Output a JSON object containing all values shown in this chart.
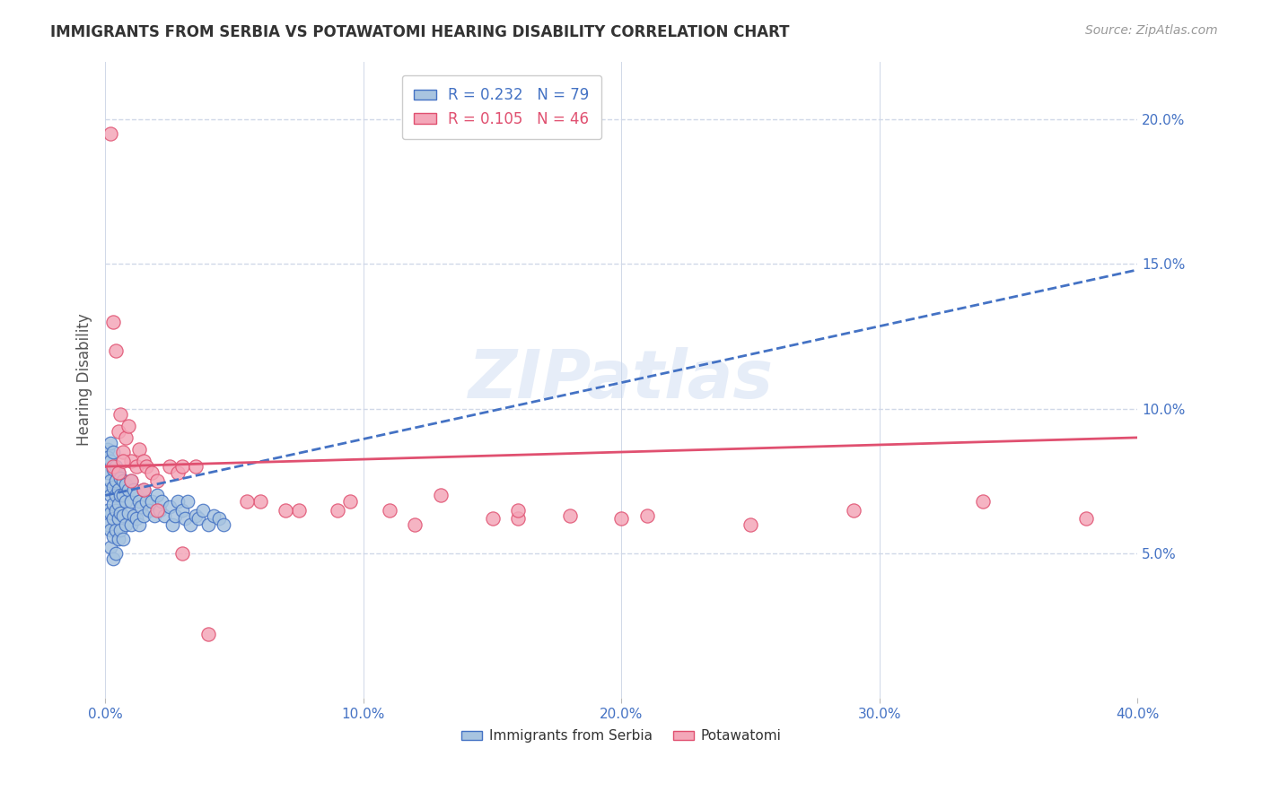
{
  "title": "IMMIGRANTS FROM SERBIA VS POTAWATOMI HEARING DISABILITY CORRELATION CHART",
  "source": "Source: ZipAtlas.com",
  "ylabel": "Hearing Disability",
  "xlim": [
    0.0,
    0.4
  ],
  "ylim": [
    0.0,
    0.22
  ],
  "x_ticks": [
    0.0,
    0.1,
    0.2,
    0.3,
    0.4
  ],
  "x_tick_labels": [
    "0.0%",
    "10.0%",
    "20.0%",
    "30.0%",
    "40.0%"
  ],
  "y_ticks": [
    0.05,
    0.1,
    0.15,
    0.2
  ],
  "y_tick_labels": [
    "5.0%",
    "10.0%",
    "15.0%",
    "20.0%"
  ],
  "serbia_color": "#a8c4e0",
  "serbia_edge_color": "#4472c4",
  "potawatomi_color": "#f4a7b9",
  "potawatomi_edge_color": "#e05070",
  "serbia_line_color": "#4472c4",
  "potawatomi_line_color": "#e05070",
  "serbia_R": 0.232,
  "serbia_N": 79,
  "potawatomi_R": 0.105,
  "potawatomi_N": 46,
  "watermark": "ZIPatlas",
  "background_color": "#ffffff",
  "grid_color": "#d0d8e8",
  "serbia_line_x0": 0.0,
  "serbia_line_x1": 0.4,
  "serbia_line_y0": 0.07,
  "serbia_line_y1": 0.148,
  "potawatomi_line_x0": 0.0,
  "potawatomi_line_x1": 0.4,
  "potawatomi_line_y0": 0.08,
  "potawatomi_line_y1": 0.09,
  "serbia_scatter_x": [
    0.001,
    0.001,
    0.001,
    0.001,
    0.001,
    0.001,
    0.002,
    0.002,
    0.002,
    0.002,
    0.002,
    0.002,
    0.002,
    0.003,
    0.003,
    0.003,
    0.003,
    0.003,
    0.003,
    0.003,
    0.004,
    0.004,
    0.004,
    0.004,
    0.004,
    0.004,
    0.005,
    0.005,
    0.005,
    0.005,
    0.005,
    0.006,
    0.006,
    0.006,
    0.006,
    0.007,
    0.007,
    0.007,
    0.007,
    0.008,
    0.008,
    0.008,
    0.009,
    0.009,
    0.01,
    0.01,
    0.01,
    0.011,
    0.011,
    0.012,
    0.012,
    0.013,
    0.013,
    0.014,
    0.015,
    0.015,
    0.016,
    0.017,
    0.018,
    0.019,
    0.02,
    0.021,
    0.022,
    0.023,
    0.025,
    0.026,
    0.027,
    0.028,
    0.03,
    0.031,
    0.032,
    0.033,
    0.035,
    0.036,
    0.038,
    0.04,
    0.042,
    0.044,
    0.046
  ],
  "serbia_scatter_y": [
    0.086,
    0.083,
    0.078,
    0.072,
    0.065,
    0.06,
    0.088,
    0.082,
    0.075,
    0.07,
    0.064,
    0.058,
    0.052,
    0.085,
    0.079,
    0.073,
    0.067,
    0.062,
    0.056,
    0.048,
    0.08,
    0.075,
    0.07,
    0.065,
    0.058,
    0.05,
    0.078,
    0.072,
    0.067,
    0.062,
    0.055,
    0.076,
    0.07,
    0.064,
    0.058,
    0.075,
    0.07,
    0.063,
    0.055,
    0.074,
    0.068,
    0.06,
    0.072,
    0.064,
    0.075,
    0.068,
    0.06,
    0.072,
    0.063,
    0.07,
    0.062,
    0.068,
    0.06,
    0.066,
    0.072,
    0.063,
    0.068,
    0.065,
    0.068,
    0.063,
    0.07,
    0.065,
    0.068,
    0.063,
    0.066,
    0.06,
    0.063,
    0.068,
    0.065,
    0.062,
    0.068,
    0.06,
    0.063,
    0.062,
    0.065,
    0.06,
    0.063,
    0.062,
    0.06
  ],
  "potawatomi_scatter_x": [
    0.002,
    0.003,
    0.004,
    0.005,
    0.006,
    0.007,
    0.008,
    0.009,
    0.01,
    0.012,
    0.013,
    0.015,
    0.016,
    0.018,
    0.02,
    0.025,
    0.028,
    0.03,
    0.035,
    0.06,
    0.075,
    0.09,
    0.11,
    0.13,
    0.15,
    0.18,
    0.2,
    0.25,
    0.003,
    0.005,
    0.007,
    0.01,
    0.015,
    0.02,
    0.03,
    0.04,
    0.055,
    0.07,
    0.095,
    0.12,
    0.16,
    0.21,
    0.29,
    0.34,
    0.38,
    0.16
  ],
  "potawatomi_scatter_y": [
    0.195,
    0.13,
    0.12,
    0.092,
    0.098,
    0.085,
    0.09,
    0.094,
    0.082,
    0.08,
    0.086,
    0.082,
    0.08,
    0.078,
    0.075,
    0.08,
    0.078,
    0.08,
    0.08,
    0.068,
    0.065,
    0.065,
    0.065,
    0.07,
    0.062,
    0.063,
    0.062,
    0.06,
    0.08,
    0.078,
    0.082,
    0.075,
    0.072,
    0.065,
    0.05,
    0.022,
    0.068,
    0.065,
    0.068,
    0.06,
    0.062,
    0.063,
    0.065,
    0.068,
    0.062,
    0.065
  ]
}
